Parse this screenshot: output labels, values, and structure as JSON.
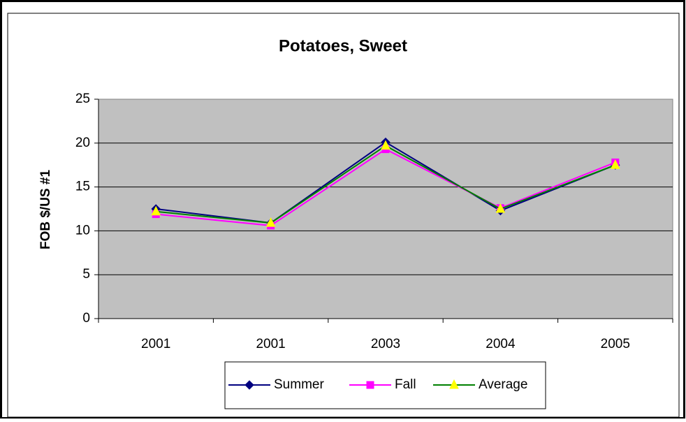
{
  "chart_data": {
    "type": "line",
    "title": "Potatoes, Sweet",
    "y_label": "FOB $/US #1",
    "categories": [
      "2001",
      "2001",
      "2003",
      "2004",
      "2005"
    ],
    "series": [
      {
        "name": "Summer",
        "color": "#000080",
        "marker": "diamond",
        "marker_color": "#000080",
        "values": [
          12.5,
          10.9,
          20.1,
          12.3,
          17.5
        ]
      },
      {
        "name": "Fall",
        "color": "#ff00ff",
        "marker": "square",
        "marker_color": "#ff00ff",
        "values": [
          11.9,
          10.6,
          19.3,
          12.6,
          17.8
        ]
      },
      {
        "name": "Average",
        "color": "#008000",
        "marker": "triangle",
        "marker_color": "#ffff00",
        "values": [
          12.2,
          10.9,
          19.7,
          12.5,
          17.5
        ]
      }
    ],
    "ylim": [
      0,
      25
    ],
    "yticks": [
      0,
      5,
      10,
      15,
      20,
      25
    ],
    "grid": true,
    "legend": "bottom"
  }
}
